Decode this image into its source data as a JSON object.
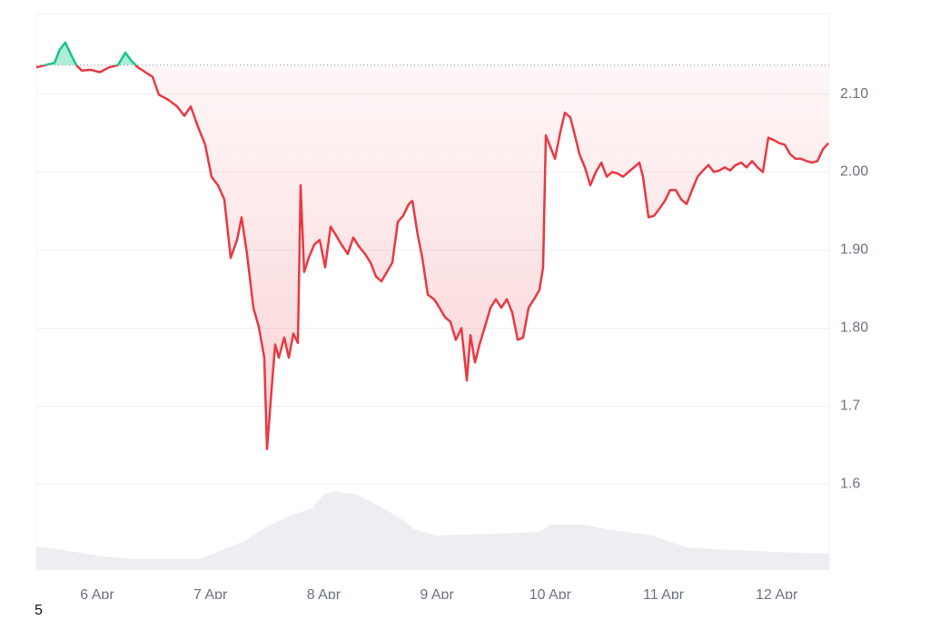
{
  "chart_data": {
    "type": "line",
    "x": [
      5.463,
      5.543,
      5.623,
      5.671,
      5.719,
      5.767,
      5.816,
      5.864,
      5.944,
      6.024,
      6.104,
      6.184,
      6.249,
      6.305,
      6.361,
      6.425,
      6.489,
      6.545,
      6.625,
      6.706,
      6.77,
      6.826,
      6.89,
      6.954,
      7.01,
      7.067,
      7.123,
      7.179,
      7.235,
      7.275,
      7.323,
      7.379,
      7.427,
      7.476,
      7.5,
      7.54,
      7.572,
      7.604,
      7.652,
      7.692,
      7.732,
      7.772,
      7.796,
      7.828,
      7.868,
      7.917,
      7.965,
      8.013,
      8.061,
      8.109,
      8.157,
      8.213,
      8.261,
      8.309,
      8.366,
      8.414,
      8.462,
      8.51,
      8.558,
      8.606,
      8.654,
      8.702,
      8.751,
      8.783,
      8.831,
      8.871,
      8.919,
      8.975,
      9.023,
      9.071,
      9.119,
      9.167,
      9.216,
      9.264,
      9.296,
      9.336,
      9.376,
      9.424,
      9.472,
      9.52,
      9.568,
      9.617,
      9.665,
      9.713,
      9.761,
      9.809,
      9.857,
      9.905,
      9.937,
      9.961,
      9.993,
      10.042,
      10.09,
      10.13,
      10.178,
      10.218,
      10.258,
      10.306,
      10.354,
      10.402,
      10.451,
      10.499,
      10.547,
      10.595,
      10.643,
      10.691,
      10.739,
      10.787,
      10.819,
      10.868,
      10.916,
      10.964,
      11.012,
      11.06,
      11.108,
      11.156,
      11.204,
      11.252,
      11.301,
      11.349,
      11.397,
      11.445,
      11.493,
      11.541,
      11.589,
      11.637,
      11.686,
      11.734,
      11.782,
      11.83,
      11.878,
      11.926,
      11.974,
      12.022,
      12.07,
      12.118,
      12.167,
      12.215,
      12.263,
      12.311,
      12.359,
      12.407,
      12.455
    ],
    "values": [
      2.134,
      2.137,
      2.14,
      2.157,
      2.166,
      2.151,
      2.137,
      2.13,
      2.131,
      2.128,
      2.134,
      2.137,
      2.153,
      2.142,
      2.134,
      2.128,
      2.122,
      2.099,
      2.093,
      2.084,
      2.072,
      2.084,
      2.058,
      2.035,
      1.994,
      1.983,
      1.965,
      1.89,
      1.913,
      1.942,
      1.895,
      1.826,
      1.802,
      1.762,
      1.645,
      1.721,
      1.779,
      1.762,
      1.788,
      1.762,
      1.793,
      1.781,
      1.983,
      1.872,
      1.89,
      1.907,
      1.913,
      1.878,
      1.93,
      1.919,
      1.907,
      1.895,
      1.916,
      1.905,
      1.895,
      1.884,
      1.866,
      1.86,
      1.872,
      1.884,
      1.936,
      1.944,
      1.959,
      1.963,
      1.919,
      1.89,
      1.843,
      1.837,
      1.826,
      1.814,
      1.808,
      1.785,
      1.8,
      1.733,
      1.791,
      1.756,
      1.779,
      1.802,
      1.826,
      1.837,
      1.826,
      1.837,
      1.82,
      1.785,
      1.788,
      1.826,
      1.837,
      1.849,
      1.878,
      2.047,
      2.035,
      2.017,
      2.052,
      2.076,
      2.07,
      2.047,
      2.023,
      2.006,
      1.983,
      2.0,
      2.012,
      1.994,
      2.0,
      1.998,
      1.994,
      2.0,
      2.006,
      2.012,
      1.994,
      1.942,
      1.944,
      1.953,
      1.963,
      1.977,
      1.977,
      1.965,
      1.959,
      1.977,
      1.994,
      2.002,
      2.009,
      2.0,
      2.002,
      2.006,
      2.002,
      2.009,
      2.012,
      2.006,
      2.014,
      2.006,
      2.0,
      2.044,
      2.041,
      2.037,
      2.035,
      2.023,
      2.017,
      2.017,
      2.014,
      2.012,
      2.014,
      2.029,
      2.037
    ],
    "baseline": 2.137,
    "up_color": "#16c784",
    "down_color": "#ea3943",
    "xlim": [
      5.463,
      12.463
    ],
    "xticks": [
      {
        "value": 6,
        "label": "6 Apr"
      },
      {
        "value": 7,
        "label": "7 Apr"
      },
      {
        "value": 8,
        "label": "8 Apr"
      },
      {
        "value": 9,
        "label": "9 Apr"
      },
      {
        "value": 10,
        "label": "10 Apr"
      },
      {
        "value": 11,
        "label": "11 Apr"
      },
      {
        "value": 12,
        "label": "12 Apr"
      }
    ],
    "ylim": [
      1.49,
      2.203
    ],
    "yticks": [
      {
        "value": 2.1,
        "label": "2.10"
      },
      {
        "value": 2.0,
        "label": "2.00"
      },
      {
        "value": 1.9,
        "label": "1.90"
      },
      {
        "value": 1.8,
        "label": "1.80"
      },
      1.7,
      1.6
    ],
    "grid": true,
    "volume": {
      "color": "#eceef1",
      "ylim": [
        0,
        100
      ],
      "x": [
        5.463,
        5.7,
        6.0,
        6.3,
        6.6,
        6.9,
        7.1,
        7.3,
        7.5,
        7.7,
        7.9,
        8.0,
        8.1,
        8.3,
        8.5,
        8.7,
        8.8,
        9.0,
        9.5,
        9.9,
        10.0,
        10.3,
        10.5,
        10.9,
        11.2,
        11.6,
        12.0,
        12.463
      ],
      "values": [
        26,
        22,
        16,
        12,
        12,
        12,
        22,
        32,
        48,
        60,
        68,
        84,
        87,
        83,
        70,
        55,
        45,
        38,
        40,
        42,
        50,
        50,
        45,
        38,
        25,
        22,
        20,
        18
      ]
    },
    "footnote": "5"
  }
}
